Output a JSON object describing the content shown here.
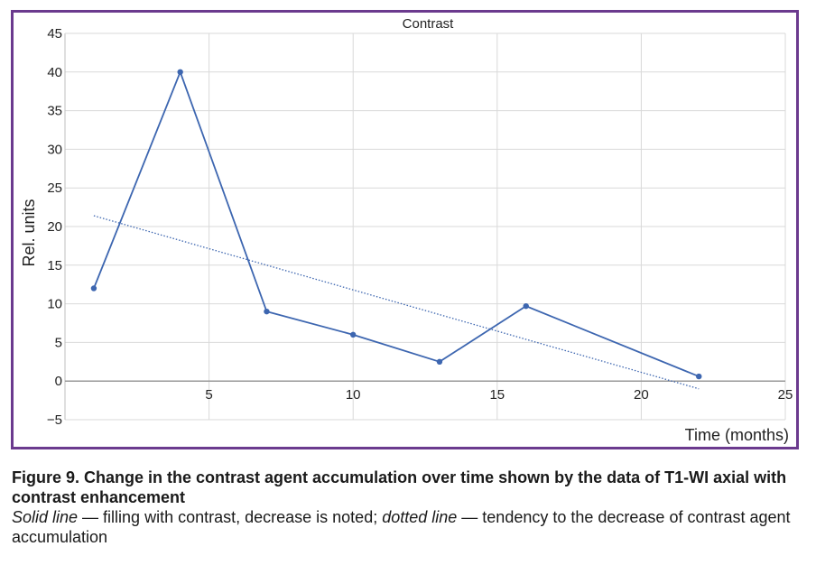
{
  "chart_data": {
    "type": "line",
    "title": "Contrast",
    "xlabel": "Time (months)",
    "ylabel": "Rel. units",
    "xlim": [
      0,
      25
    ],
    "ylim": [
      -5,
      45
    ],
    "x_ticks": [
      5,
      10,
      15,
      20,
      25
    ],
    "x_tick_labels": [
      "5",
      "10",
      "15",
      "20",
      "25"
    ],
    "y_ticks": [
      -5,
      0,
      5,
      10,
      15,
      20,
      25,
      30,
      35,
      40,
      45
    ],
    "y_tick_labels": [
      "−5",
      "0",
      "5",
      "10",
      "15",
      "20",
      "25",
      "30",
      "35",
      "40",
      "45"
    ],
    "grid": true,
    "series": [
      {
        "style": "solid",
        "color": "#3d66b0",
        "x": [
          1,
          4,
          7,
          10,
          13,
          16,
          22
        ],
        "y": [
          12,
          40,
          9,
          6,
          2.5,
          9.7,
          0.6
        ]
      },
      {
        "style": "dotted",
        "color": "#3d66b0",
        "x": [
          1,
          22
        ],
        "y": [
          21.4,
          -1
        ]
      }
    ]
  },
  "caption": {
    "title": "Figure 9. Change in the contrast agent accumulation over time shown by the data of T1-WI axial with contrast enhancement",
    "solid_term": "Solid line",
    "solid_desc": " — filling with contrast, decrease is noted; ",
    "dotted_term": "dotted line",
    "dotted_desc": " — tendency to the decrease of contrast agent accumulation"
  }
}
